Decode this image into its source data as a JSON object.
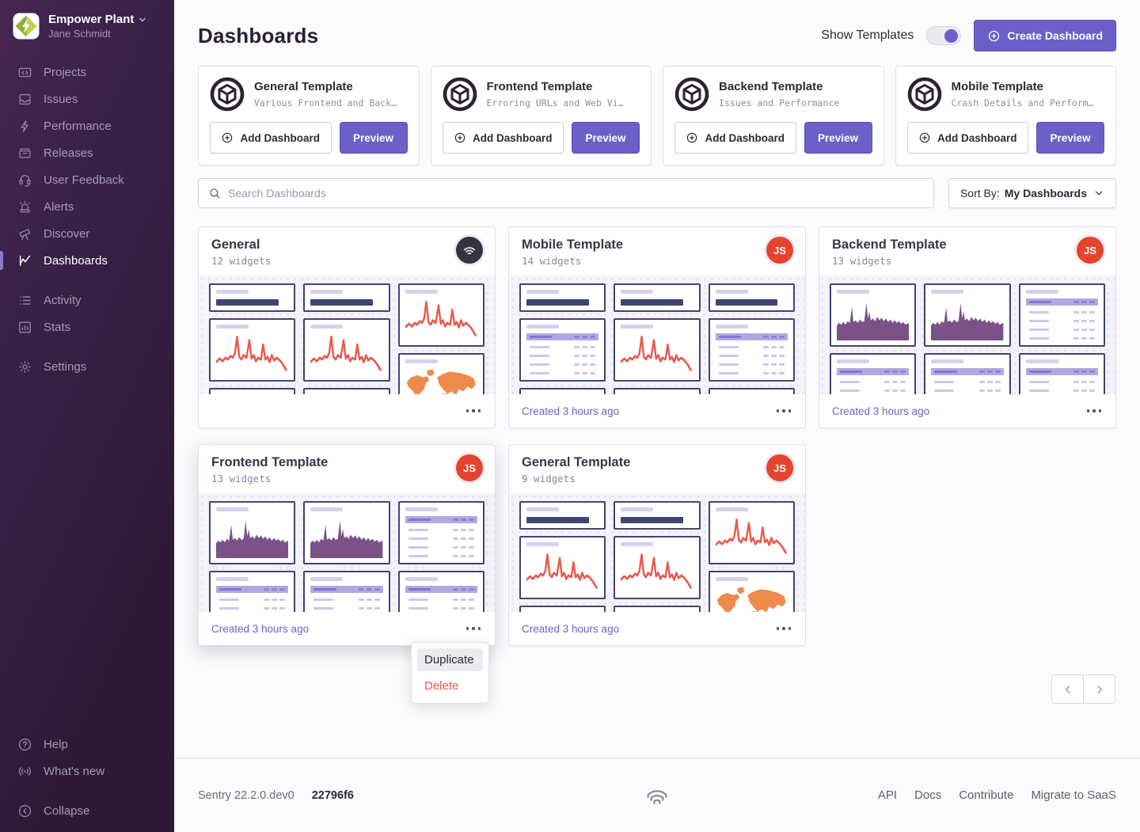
{
  "sidebar": {
    "org_name": "Empower Plant",
    "user_name": "Jane Schmidt",
    "items": [
      {
        "label": "Projects",
        "icon": "projects"
      },
      {
        "label": "Issues",
        "icon": "issues"
      },
      {
        "label": "Performance",
        "icon": "performance"
      },
      {
        "label": "Releases",
        "icon": "releases"
      },
      {
        "label": "User Feedback",
        "icon": "user-feedback"
      },
      {
        "label": "Alerts",
        "icon": "alerts"
      },
      {
        "label": "Discover",
        "icon": "discover"
      },
      {
        "label": "Dashboards",
        "icon": "dashboards",
        "active": true
      },
      {
        "label": "Activity",
        "icon": "activity",
        "gap_before": true
      },
      {
        "label": "Stats",
        "icon": "stats"
      },
      {
        "label": "Settings",
        "icon": "settings",
        "gap_before": true
      }
    ],
    "bottom_items": [
      {
        "label": "Help",
        "icon": "help"
      },
      {
        "label": "What's new",
        "icon": "whats-new"
      },
      {
        "label": "Collapse",
        "icon": "collapse",
        "gap_before": true
      }
    ]
  },
  "header": {
    "title": "Dashboards",
    "show_templates_label": "Show Templates",
    "toggle_on": true,
    "create_button": "Create Dashboard"
  },
  "templates": [
    {
      "title": "General Template",
      "description": "Various Frontend and Back…",
      "add_label": "Add Dashboard",
      "preview_label": "Preview"
    },
    {
      "title": "Frontend Template",
      "description": "Erroring URLs and Web Vi…",
      "add_label": "Add Dashboard",
      "preview_label": "Preview"
    },
    {
      "title": "Backend Template",
      "description": "Issues and Performance",
      "add_label": "Add Dashboard",
      "preview_label": "Preview"
    },
    {
      "title": "Mobile Template",
      "description": "Crash Details and Perform…",
      "add_label": "Add Dashboard",
      "preview_label": "Preview"
    }
  ],
  "search": {
    "placeholder": "Search Dashboards"
  },
  "sort": {
    "label": "Sort By:",
    "value": "My Dashboards"
  },
  "dashboards": [
    {
      "title": "General",
      "widgets_label": "12 widgets",
      "avatar": "sentry",
      "created": null,
      "layout": "general",
      "elevated": false
    },
    {
      "title": "Mobile Template",
      "widgets_label": "14 widgets",
      "avatar": "JS",
      "created": "Created 3 hours ago",
      "layout": "mobile",
      "elevated": false
    },
    {
      "title": "Backend Template",
      "widgets_label": "13 widgets",
      "avatar": "JS",
      "created": "Created 3 hours ago",
      "layout": "backend",
      "elevated": false
    },
    {
      "title": "Frontend Template",
      "widgets_label": "13 widgets",
      "avatar": "JS",
      "created": "Created 3 hours ago",
      "layout": "backend",
      "elevated": true
    },
    {
      "title": "General Template",
      "widgets_label": "9 widgets",
      "avatar": "JS",
      "created": "Created 3 hours ago",
      "layout": "general",
      "elevated": false
    }
  ],
  "widget_layouts": {
    "general": [
      [
        "bignumber",
        "line",
        "line"
      ],
      [
        "bignumber",
        "line",
        "line"
      ],
      [
        "line_tall",
        "map"
      ]
    ],
    "mobile": [
      [
        "bignumber",
        "table",
        "bignumber"
      ],
      [
        "bignumber",
        "line",
        "bignumber"
      ],
      [
        "bignumber",
        "table",
        "bignumber"
      ]
    ],
    "backend": [
      [
        "area",
        "table_short"
      ],
      [
        "area",
        "table_short"
      ],
      [
        "table_tall",
        "table_short"
      ]
    ]
  },
  "context_menu": {
    "items": [
      {
        "label": "Duplicate",
        "hover": true,
        "danger": false
      },
      {
        "label": "Delete",
        "hover": false,
        "danger": true
      }
    ]
  },
  "footer": {
    "version": "Sentry 22.2.0.dev0",
    "build": "22796f6",
    "links": [
      "API",
      "Docs",
      "Contribute",
      "Migrate to SaaS"
    ]
  },
  "colors": {
    "accent": "#6c5fc7",
    "danger": "#e8594c",
    "chart_line": "#e8594c",
    "chart_area": "#7a5288",
    "map_orange": "#ee8a4a",
    "widget_border": "#3f4571",
    "avatar_red": "#e5432e"
  }
}
